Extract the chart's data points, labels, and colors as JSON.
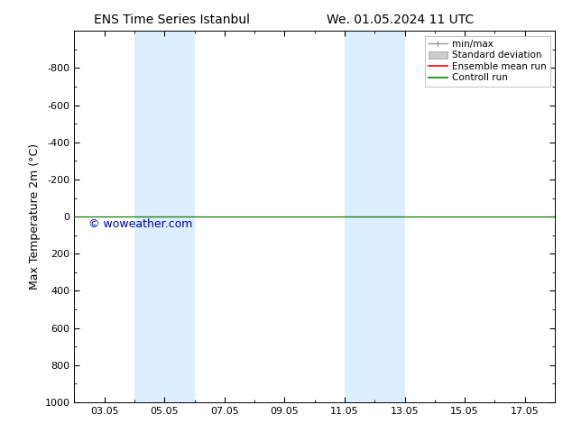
{
  "title_left": "ENS Time Series Istanbul",
  "title_right": "We. 01.05.2024 11 UTC",
  "ylabel": "Max Temperature 2m (°C)",
  "ylim_top": -1000,
  "ylim_bottom": 1000,
  "yticks": [
    -800,
    -600,
    -400,
    -200,
    0,
    200,
    400,
    600,
    800,
    1000
  ],
  "xtick_labels": [
    "03.05",
    "05.05",
    "07.05",
    "09.05",
    "11.05",
    "13.05",
    "15.05",
    "17.05"
  ],
  "xtick_positions": [
    3,
    5,
    7,
    9,
    11,
    13,
    15,
    17
  ],
  "xlim": [
    2,
    18
  ],
  "shaded_bands": [
    {
      "x_start": 4.0,
      "x_end": 6.0
    },
    {
      "x_start": 11.0,
      "x_end": 13.0
    }
  ],
  "shaded_color": "#ddeeff",
  "green_line_y": 0,
  "red_line_y": 0,
  "watermark": "© woweather.com",
  "watermark_color": "#0000bb",
  "legend_labels": [
    "min/max",
    "Standard deviation",
    "Ensemble mean run",
    "Controll run"
  ],
  "legend_colors": [
    "#999999",
    "#cccccc",
    "#ff0000",
    "#008000"
  ],
  "bg_color": "#ffffff",
  "plot_bg_color": "#ffffff",
  "border_color": "#000000",
  "title_fontsize": 10,
  "axis_label_fontsize": 9,
  "tick_fontsize": 8,
  "legend_fontsize": 7.5,
  "watermark_fontsize": 9
}
